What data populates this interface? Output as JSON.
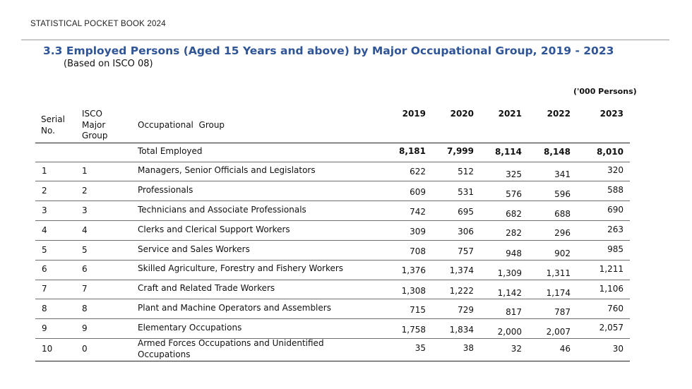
{
  "header": {
    "book_title": "STATISTICAL POCKET BOOK 2024"
  },
  "table": {
    "title": "3.3 Employed Persons (Aged 15 Years and above) by Major Occupational Group, 2019 - 2023",
    "subtitle": "(Based on ISCO 08)",
    "unit": "('000 Persons)",
    "columns": {
      "serial_line1": "Serial",
      "serial_line2": "No.",
      "isco_line1": "ISCO",
      "isco_line2": "Major",
      "isco_line3": "Group",
      "group": "Occupational  Group",
      "years": [
        "2019",
        "2020",
        "2021",
        "2022",
        "2023"
      ]
    },
    "total": {
      "label": "Total Employed",
      "values": [
        "8,181",
        "7,999",
        "8,114",
        "8,148",
        "8,010"
      ]
    },
    "rows": [
      {
        "serial": "1",
        "isco": "1",
        "group": "Managers, Senior Officials and Legislators",
        "values": [
          "622",
          "512",
          "325",
          "341",
          "320"
        ]
      },
      {
        "serial": "2",
        "isco": "2",
        "group": "Professionals",
        "values": [
          "609",
          "531",
          "576",
          "596",
          "588"
        ]
      },
      {
        "serial": "3",
        "isco": "3",
        "group": "Technicians and Associate Professionals",
        "values": [
          "742",
          "695",
          "682",
          "688",
          "690"
        ]
      },
      {
        "serial": "4",
        "isco": "4",
        "group": "Clerks and Clerical Support Workers",
        "values": [
          "309",
          "306",
          "282",
          "296",
          "263"
        ]
      },
      {
        "serial": "5",
        "isco": "5",
        "group": "Service and Sales Workers",
        "values": [
          "708",
          "757",
          "948",
          "902",
          "985"
        ]
      },
      {
        "serial": "6",
        "isco": "6",
        "group": "Skilled Agriculture, Forestry and Fishery Workers",
        "values": [
          "1,376",
          "1,374",
          "1,309",
          "1,311",
          "1,211"
        ]
      },
      {
        "serial": "7",
        "isco": "7",
        "group": "Craft and Related Trade Workers",
        "values": [
          "1,308",
          "1,222",
          "1,142",
          "1,174",
          "1,106"
        ]
      },
      {
        "serial": "8",
        "isco": "8",
        "group": "Plant and Machine Operators and Assemblers",
        "values": [
          "715",
          "729",
          "817",
          "787",
          "760"
        ]
      },
      {
        "serial": "9",
        "isco": "9",
        "group": "Elementary Occupations",
        "values": [
          "1,758",
          "1,834",
          "2,000",
          "2,007",
          "2,057"
        ]
      },
      {
        "serial": "10",
        "isco": "0",
        "group": "Armed Forces Occupations and Unidentified",
        "group_line2": "Occupations",
        "values": [
          "35",
          "38",
          "32",
          "46",
          "30"
        ]
      }
    ]
  }
}
